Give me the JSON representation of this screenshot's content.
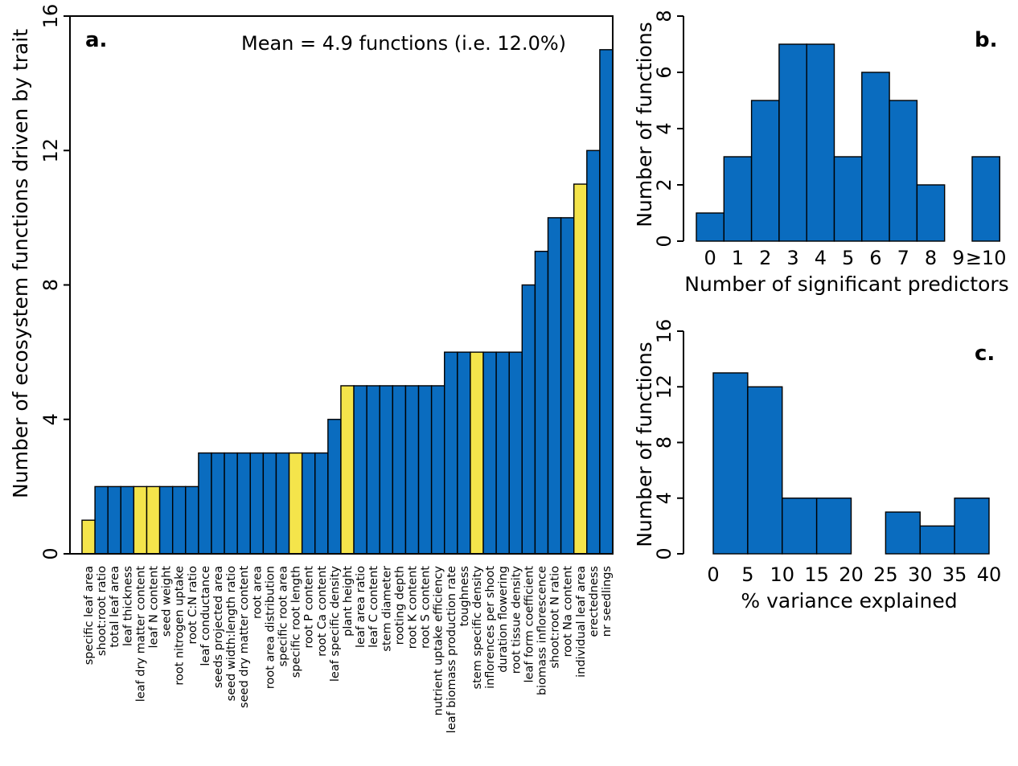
{
  "colors": {
    "blue": "#0a6cbf",
    "yellow": "#f4e44b",
    "stroke": "#000000",
    "background": "#ffffff"
  },
  "chart_data": [
    {
      "panel": "a.",
      "type": "bar",
      "annotation": "Mean = 4.9 functions (i.e. 12.0%)",
      "xlabel": "",
      "ylabel": "Number of ecosystem functions driven by trait",
      "ylim": [
        0,
        16
      ],
      "yticks": [
        "0",
        "4",
        "8",
        "12",
        "16"
      ],
      "categories": [
        "specific leaf area",
        "shoot:root ratio",
        "total leaf area",
        "leaf thickness",
        "leaf dry matter content",
        "leaf N content",
        "seed weight",
        "root nitrogen uptake",
        "root C:N ratio",
        "leaf conductance",
        "seeds projected area",
        "seed width:length ratio",
        "seed dry matter content",
        "root area",
        "root area distribution",
        "specific root area",
        "specific root length",
        "root P content",
        "root Ca content",
        "leaf specific density",
        "plant height",
        "leaf area ratio",
        "leaf C content",
        "stem diameter",
        "rooting depth",
        "root K content",
        "root S content",
        "nutrient uptake efficiency",
        "leaf biomass production rate",
        "toughness",
        "stem specific density",
        "inflorences per shoot",
        "duration flowering",
        "root tissue density",
        "leaf form coefficient",
        "biomass inflorescence",
        "shoot:root N ratio",
        "root Na content",
        "individual leaf area",
        "erectedness",
        "nr seedlings"
      ],
      "values": [
        1,
        2,
        2,
        2,
        2,
        2,
        2,
        2,
        2,
        3,
        3,
        3,
        3,
        3,
        3,
        3,
        3,
        3,
        3,
        4,
        5,
        5,
        5,
        5,
        5,
        5,
        5,
        5,
        6,
        6,
        6,
        6,
        6,
        6,
        8,
        9,
        10,
        10,
        11,
        12,
        15
      ],
      "highlighted": [
        "specific leaf area",
        "leaf dry matter content",
        "leaf N content",
        "specific root length",
        "plant height",
        "stem specific density",
        "individual leaf area"
      ]
    },
    {
      "panel": "b.",
      "type": "bar",
      "xlabel": "Number of significant predictors",
      "ylabel": "Number of functions",
      "ylim": [
        0,
        8
      ],
      "yticks": [
        "0",
        "2",
        "4",
        "6",
        "8"
      ],
      "categories": [
        "0",
        "1",
        "2",
        "3",
        "4",
        "5",
        "6",
        "7",
        "8",
        "9",
        "≥10"
      ],
      "values": [
        1,
        3,
        5,
        7,
        7,
        3,
        6,
        5,
        2,
        0,
        3
      ]
    },
    {
      "panel": "c.",
      "type": "bar",
      "xlabel": "% variance explained",
      "ylabel": "Number of functions",
      "ylim": [
        0,
        16
      ],
      "yticks": [
        "0",
        "4",
        "8",
        "12",
        "16"
      ],
      "xticks": [
        "0",
        "5",
        "10",
        "15",
        "20",
        "25",
        "30",
        "35",
        "40"
      ],
      "bins": [
        [
          0,
          5
        ],
        [
          5,
          10
        ],
        [
          10,
          15
        ],
        [
          15,
          20
        ],
        [
          20,
          25
        ],
        [
          25,
          30
        ],
        [
          30,
          35
        ],
        [
          35,
          40
        ]
      ],
      "values": [
        13,
        12,
        4,
        4,
        0,
        3,
        2,
        4
      ]
    }
  ]
}
